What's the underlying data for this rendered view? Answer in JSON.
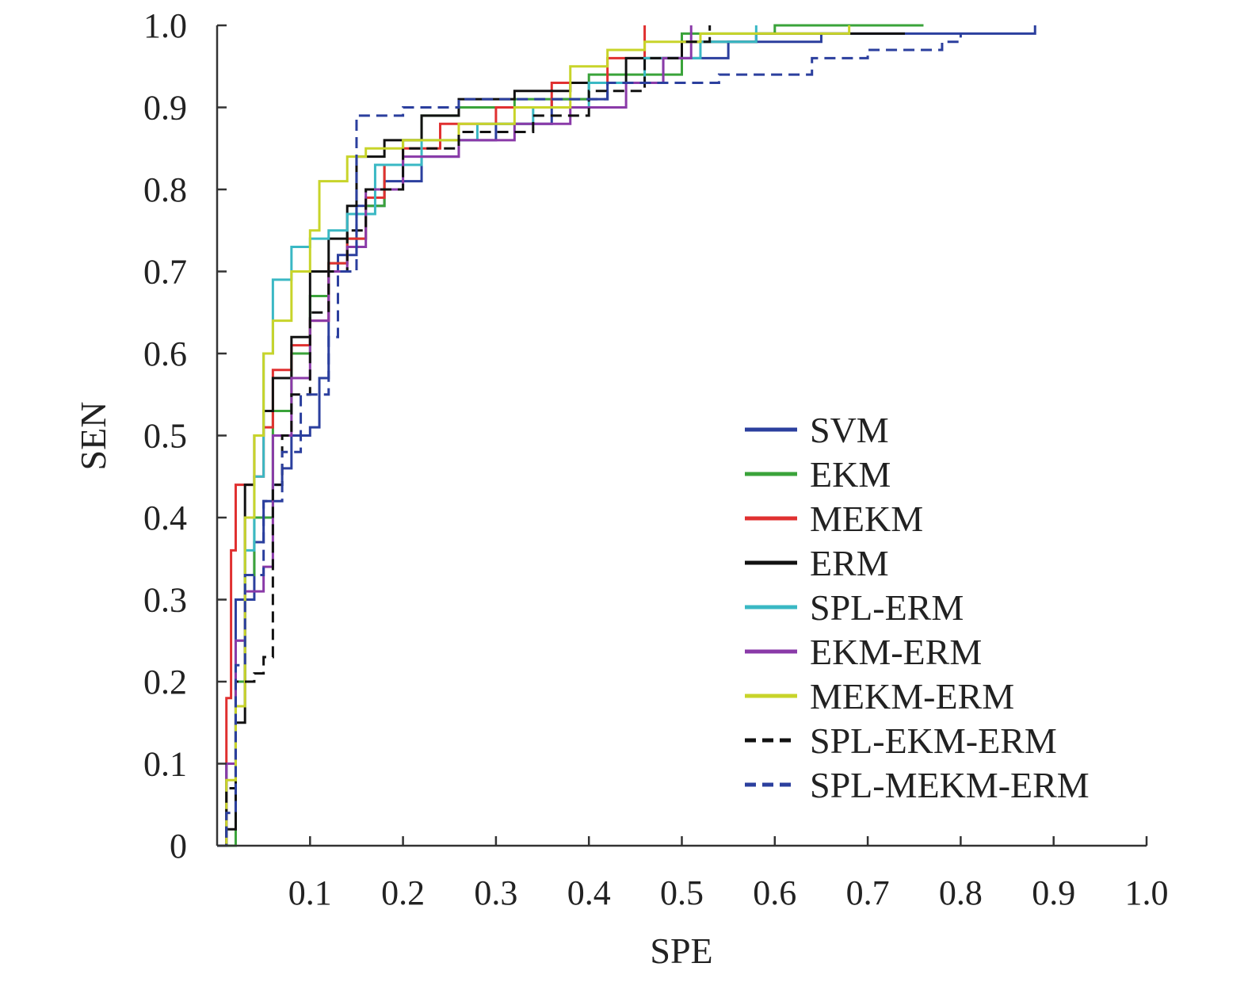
{
  "chart_data": {
    "type": "line",
    "xlabel": "SPE",
    "ylabel": "SEN",
    "xlim": [
      0,
      1
    ],
    "ylim": [
      0,
      1
    ],
    "x_ticks": [
      "0.1",
      "0.2",
      "0.3",
      "0.4",
      "0.5",
      "0.6",
      "0.7",
      "0.8",
      "0.9",
      "1.0"
    ],
    "y_ticks": [
      "0",
      "0.1",
      "0.2",
      "0.3",
      "0.4",
      "0.5",
      "0.6",
      "0.7",
      "0.8",
      "0.9",
      "1.0"
    ],
    "legend_position": "lower-right",
    "grid": false,
    "series": [
      {
        "name": "SVM",
        "color": "#2b3f9e",
        "dash": "solid",
        "points": [
          [
            0,
            0
          ],
          [
            0.01,
            0.1
          ],
          [
            0.02,
            0.3
          ],
          [
            0.04,
            0.37
          ],
          [
            0.05,
            0.42
          ],
          [
            0.06,
            0.44
          ],
          [
            0.07,
            0.46
          ],
          [
            0.08,
            0.5
          ],
          [
            0.1,
            0.51
          ],
          [
            0.11,
            0.57
          ],
          [
            0.12,
            0.7
          ],
          [
            0.13,
            0.72
          ],
          [
            0.15,
            0.78
          ],
          [
            0.18,
            0.81
          ],
          [
            0.22,
            0.84
          ],
          [
            0.26,
            0.86
          ],
          [
            0.3,
            0.88
          ],
          [
            0.36,
            0.91
          ],
          [
            0.42,
            0.93
          ],
          [
            0.48,
            0.96
          ],
          [
            0.55,
            0.98
          ],
          [
            0.65,
            0.99
          ],
          [
            0.88,
            1.0
          ]
        ]
      },
      {
        "name": "EKM",
        "color": "#3aa33a",
        "dash": "solid",
        "points": [
          [
            0,
            0
          ],
          [
            0.02,
            0.2
          ],
          [
            0.03,
            0.33
          ],
          [
            0.04,
            0.4
          ],
          [
            0.06,
            0.53
          ],
          [
            0.08,
            0.6
          ],
          [
            0.1,
            0.67
          ],
          [
            0.12,
            0.71
          ],
          [
            0.14,
            0.74
          ],
          [
            0.16,
            0.78
          ],
          [
            0.18,
            0.83
          ],
          [
            0.2,
            0.86
          ],
          [
            0.22,
            0.89
          ],
          [
            0.26,
            0.9
          ],
          [
            0.32,
            0.91
          ],
          [
            0.4,
            0.94
          ],
          [
            0.5,
            0.99
          ],
          [
            0.6,
            1.0
          ],
          [
            0.76,
            1.0
          ]
        ]
      },
      {
        "name": "MEKM",
        "color": "#e03030",
        "dash": "solid",
        "points": [
          [
            0,
            0
          ],
          [
            0.01,
            0.18
          ],
          [
            0.015,
            0.36
          ],
          [
            0.02,
            0.44
          ],
          [
            0.04,
            0.45
          ],
          [
            0.05,
            0.51
          ],
          [
            0.06,
            0.58
          ],
          [
            0.08,
            0.61
          ],
          [
            0.1,
            0.64
          ],
          [
            0.12,
            0.71
          ],
          [
            0.14,
            0.74
          ],
          [
            0.16,
            0.79
          ],
          [
            0.18,
            0.83
          ],
          [
            0.2,
            0.85
          ],
          [
            0.24,
            0.88
          ],
          [
            0.3,
            0.9
          ],
          [
            0.36,
            0.93
          ],
          [
            0.42,
            0.96
          ],
          [
            0.46,
            1.0
          ]
        ]
      },
      {
        "name": "ERM",
        "color": "#111111",
        "dash": "solid",
        "points": [
          [
            0,
            0
          ],
          [
            0.01,
            0.02
          ],
          [
            0.02,
            0.15
          ],
          [
            0.03,
            0.44
          ],
          [
            0.04,
            0.5
          ],
          [
            0.05,
            0.53
          ],
          [
            0.06,
            0.57
          ],
          [
            0.08,
            0.62
          ],
          [
            0.1,
            0.7
          ],
          [
            0.12,
            0.74
          ],
          [
            0.14,
            0.78
          ],
          [
            0.15,
            0.84
          ],
          [
            0.18,
            0.86
          ],
          [
            0.22,
            0.89
          ],
          [
            0.26,
            0.91
          ],
          [
            0.32,
            0.92
          ],
          [
            0.38,
            0.93
          ],
          [
            0.44,
            0.96
          ],
          [
            0.5,
            0.98
          ],
          [
            0.58,
            0.99
          ],
          [
            0.74,
            0.99
          ]
        ]
      },
      {
        "name": "SPL-ERM",
        "color": "#3ab8c4",
        "dash": "solid",
        "points": [
          [
            0,
            0
          ],
          [
            0.01,
            0.1
          ],
          [
            0.02,
            0.25
          ],
          [
            0.03,
            0.36
          ],
          [
            0.04,
            0.45
          ],
          [
            0.05,
            0.6
          ],
          [
            0.06,
            0.69
          ],
          [
            0.08,
            0.73
          ],
          [
            0.1,
            0.74
          ],
          [
            0.12,
            0.75
          ],
          [
            0.14,
            0.77
          ],
          [
            0.17,
            0.83
          ],
          [
            0.22,
            0.86
          ],
          [
            0.28,
            0.88
          ],
          [
            0.34,
            0.9
          ],
          [
            0.4,
            0.93
          ],
          [
            0.46,
            0.96
          ],
          [
            0.52,
            0.98
          ],
          [
            0.58,
            1.0
          ]
        ]
      },
      {
        "name": "EKM-ERM",
        "color": "#8a3aa8",
        "dash": "solid",
        "points": [
          [
            0,
            0
          ],
          [
            0.01,
            0.1
          ],
          [
            0.02,
            0.25
          ],
          [
            0.03,
            0.31
          ],
          [
            0.05,
            0.34
          ],
          [
            0.06,
            0.5
          ],
          [
            0.08,
            0.57
          ],
          [
            0.1,
            0.64
          ],
          [
            0.12,
            0.7
          ],
          [
            0.14,
            0.73
          ],
          [
            0.16,
            0.8
          ],
          [
            0.2,
            0.84
          ],
          [
            0.26,
            0.86
          ],
          [
            0.32,
            0.88
          ],
          [
            0.38,
            0.9
          ],
          [
            0.44,
            0.93
          ],
          [
            0.48,
            0.96
          ],
          [
            0.51,
            1.0
          ]
        ]
      },
      {
        "name": "MEKM-ERM",
        "color": "#c8d42a",
        "dash": "solid",
        "points": [
          [
            0,
            0
          ],
          [
            0.01,
            0.08
          ],
          [
            0.02,
            0.17
          ],
          [
            0.03,
            0.4
          ],
          [
            0.04,
            0.5
          ],
          [
            0.05,
            0.6
          ],
          [
            0.06,
            0.64
          ],
          [
            0.08,
            0.7
          ],
          [
            0.1,
            0.75
          ],
          [
            0.11,
            0.81
          ],
          [
            0.14,
            0.84
          ],
          [
            0.16,
            0.85
          ],
          [
            0.2,
            0.86
          ],
          [
            0.26,
            0.88
          ],
          [
            0.32,
            0.9
          ],
          [
            0.38,
            0.95
          ],
          [
            0.42,
            0.97
          ],
          [
            0.46,
            0.98
          ],
          [
            0.52,
            0.99
          ],
          [
            0.68,
            1.0
          ]
        ]
      },
      {
        "name": "SPL-EKM-ERM",
        "color": "#111111",
        "dash": "dashed",
        "points": [
          [
            0,
            0
          ],
          [
            0.01,
            0.07
          ],
          [
            0.02,
            0.2
          ],
          [
            0.04,
            0.21
          ],
          [
            0.05,
            0.23
          ],
          [
            0.06,
            0.44
          ],
          [
            0.07,
            0.5
          ],
          [
            0.08,
            0.55
          ],
          [
            0.1,
            0.65
          ],
          [
            0.12,
            0.7
          ],
          [
            0.14,
            0.75
          ],
          [
            0.16,
            0.8
          ],
          [
            0.2,
            0.85
          ],
          [
            0.26,
            0.87
          ],
          [
            0.34,
            0.89
          ],
          [
            0.4,
            0.92
          ],
          [
            0.46,
            0.96
          ],
          [
            0.5,
            0.98
          ],
          [
            0.53,
            1.0
          ]
        ]
      },
      {
        "name": "SPL-MEKM-ERM",
        "color": "#2b3f9e",
        "dash": "dashed",
        "points": [
          [
            0,
            0
          ],
          [
            0.01,
            0.04
          ],
          [
            0.02,
            0.22
          ],
          [
            0.03,
            0.33
          ],
          [
            0.05,
            0.42
          ],
          [
            0.07,
            0.48
          ],
          [
            0.09,
            0.55
          ],
          [
            0.12,
            0.62
          ],
          [
            0.13,
            0.7
          ],
          [
            0.15,
            0.89
          ],
          [
            0.2,
            0.9
          ],
          [
            0.26,
            0.91
          ],
          [
            0.34,
            0.91
          ],
          [
            0.42,
            0.93
          ],
          [
            0.52,
            0.93
          ],
          [
            0.54,
            0.94
          ],
          [
            0.64,
            0.96
          ],
          [
            0.7,
            0.97
          ],
          [
            0.78,
            0.98
          ],
          [
            0.8,
            0.99
          ]
        ]
      }
    ]
  }
}
